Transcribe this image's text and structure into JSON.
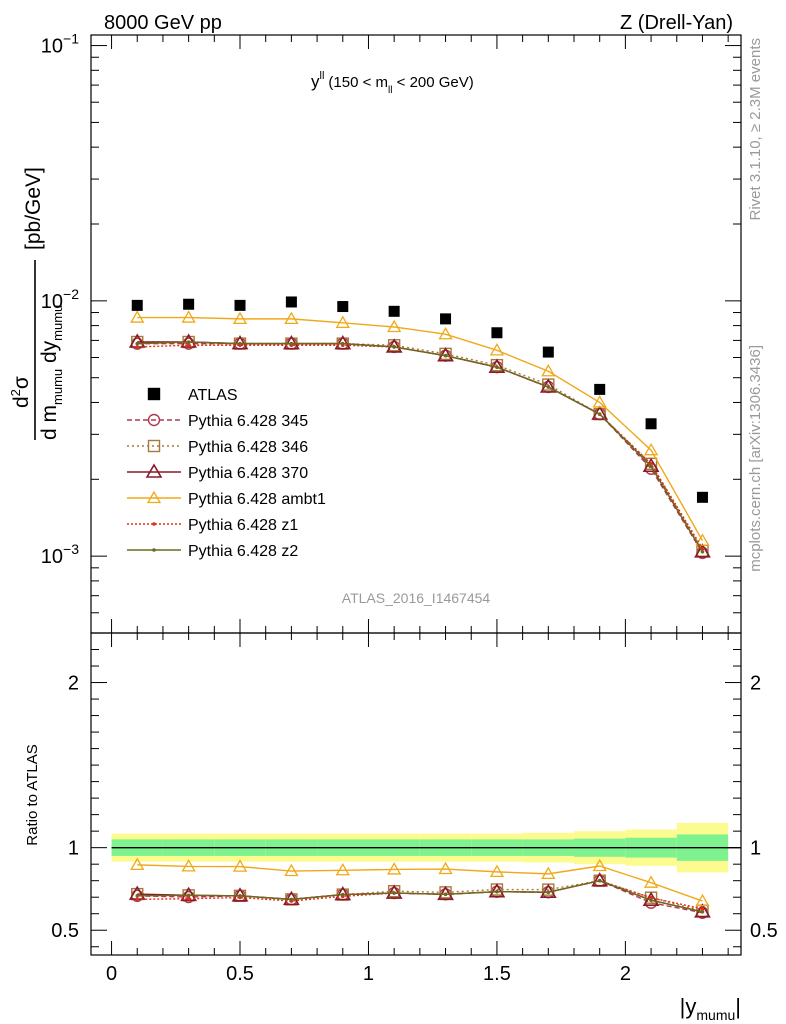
{
  "header": {
    "left": "8000 GeV pp",
    "right": "Z (Drell-Yan)"
  },
  "side": {
    "top": "Rivet 3.1.10, ≥ 2.3M events",
    "bottom": "mcplots.cern.ch [arXiv:1306.3436]"
  },
  "chart_data": {
    "type": "line",
    "annotation": {
      "main": "y",
      "sup": "ll",
      "range_prefix": "(150 < m",
      "range_sub": "ll",
      "range_suffix": " < 200 GeV)"
    },
    "watermark": "ATLAS_2016_I1467454",
    "xlabel": "|y",
    "xlabel_sub": "mumu",
    "xlabel_end": "|",
    "xlim": [
      -0.08,
      2.45
    ],
    "x_ticks": [
      "0",
      "0.5",
      "1",
      "1.5",
      "2"
    ],
    "x_tick_values": [
      0,
      0.5,
      1,
      1.5,
      2
    ],
    "x": [
      0.1,
      0.3,
      0.5,
      0.7,
      0.9,
      1.1,
      1.3,
      1.5,
      1.7,
      1.9,
      2.1,
      2.3
    ],
    "main_panel": {
      "scale": "log",
      "ylim": [
        0.0005,
        0.11
      ],
      "ylabel_unit": "[pb/GeV]",
      "y_ticks": [
        {
          "value": 0.1,
          "base": "10",
          "exp": "−1"
        },
        {
          "value": 0.01,
          "base": "10",
          "exp": "−2"
        },
        {
          "value": 0.001,
          "base": "10",
          "exp": "−3"
        }
      ]
    },
    "ratio_panel": {
      "ylabel": "Ratio to ATLAS",
      "ylim": [
        0.35,
        2.3
      ],
      "y_ticks": [
        "0.5",
        "1",
        "2"
      ],
      "y_tick_values": [
        0.5,
        1,
        2
      ]
    },
    "data": {
      "name": "ATLAS",
      "values": [
        0.0096,
        0.0097,
        0.0096,
        0.0099,
        0.0095,
        0.0091,
        0.0085,
        0.0075,
        0.0063,
        0.0045,
        0.0033,
        0.0017
      ],
      "band_inner": [
        0.05,
        0.05,
        0.05,
        0.05,
        0.05,
        0.05,
        0.05,
        0.05,
        0.05,
        0.055,
        0.06,
        0.08
      ],
      "band_outer": [
        0.085,
        0.085,
        0.085,
        0.085,
        0.085,
        0.085,
        0.085,
        0.085,
        0.09,
        0.1,
        0.11,
        0.15
      ],
      "color": "#000000"
    },
    "series": [
      {
        "name": "Pythia 6.428 345",
        "color": "#b2384e",
        "marker": "circle",
        "dash": "5,3",
        "values": [
          0.0068,
          0.0068,
          0.0068,
          0.0068,
          0.0068,
          0.0066,
          0.0061,
          0.0055,
          0.0046,
          0.0036,
          0.0022,
          0.00103
        ]
      },
      {
        "name": "Pythia 6.428 346",
        "color": "#a57a3a",
        "marker": "square",
        "dash": "2,3",
        "values": [
          0.0069,
          0.0069,
          0.0068,
          0.0068,
          0.0068,
          0.0067,
          0.0062,
          0.0056,
          0.0047,
          0.0036,
          0.0023,
          0.00105
        ]
      },
      {
        "name": "Pythia 6.428 370",
        "color": "#8a1a2a",
        "marker": "triangle",
        "dash": "",
        "values": [
          0.0069,
          0.0069,
          0.0068,
          0.0068,
          0.0068,
          0.0066,
          0.0061,
          0.0055,
          0.0046,
          0.0036,
          0.00225,
          0.00104
        ]
      },
      {
        "name": "Pythia 6.428 ambt1",
        "color": "#f0a818",
        "marker": "triangle-open",
        "dash": "",
        "values": [
          0.0086,
          0.0086,
          0.0085,
          0.0085,
          0.0082,
          0.0079,
          0.0074,
          0.0064,
          0.0053,
          0.004,
          0.0026,
          0.00115
        ]
      },
      {
        "name": "Pythia 6.428 z1",
        "color": "#e62b1a",
        "marker": "dot",
        "dash": "2,2",
        "values": [
          0.0066,
          0.0067,
          0.0067,
          0.0067,
          0.0067,
          0.0066,
          0.0061,
          0.0055,
          0.0046,
          0.0036,
          0.0023,
          0.00107
        ]
      },
      {
        "name": "Pythia 6.428 z2",
        "color": "#6b6b1e",
        "marker": "dot",
        "dash": "",
        "values": [
          0.0068,
          0.0069,
          0.0068,
          0.0068,
          0.0068,
          0.0066,
          0.0061,
          0.0055,
          0.0046,
          0.0036,
          0.00225,
          0.00104
        ]
      }
    ],
    "legend_position": "center-left",
    "band_colors": {
      "inner": "#7df28f",
      "outer": "#fbfb90"
    }
  }
}
